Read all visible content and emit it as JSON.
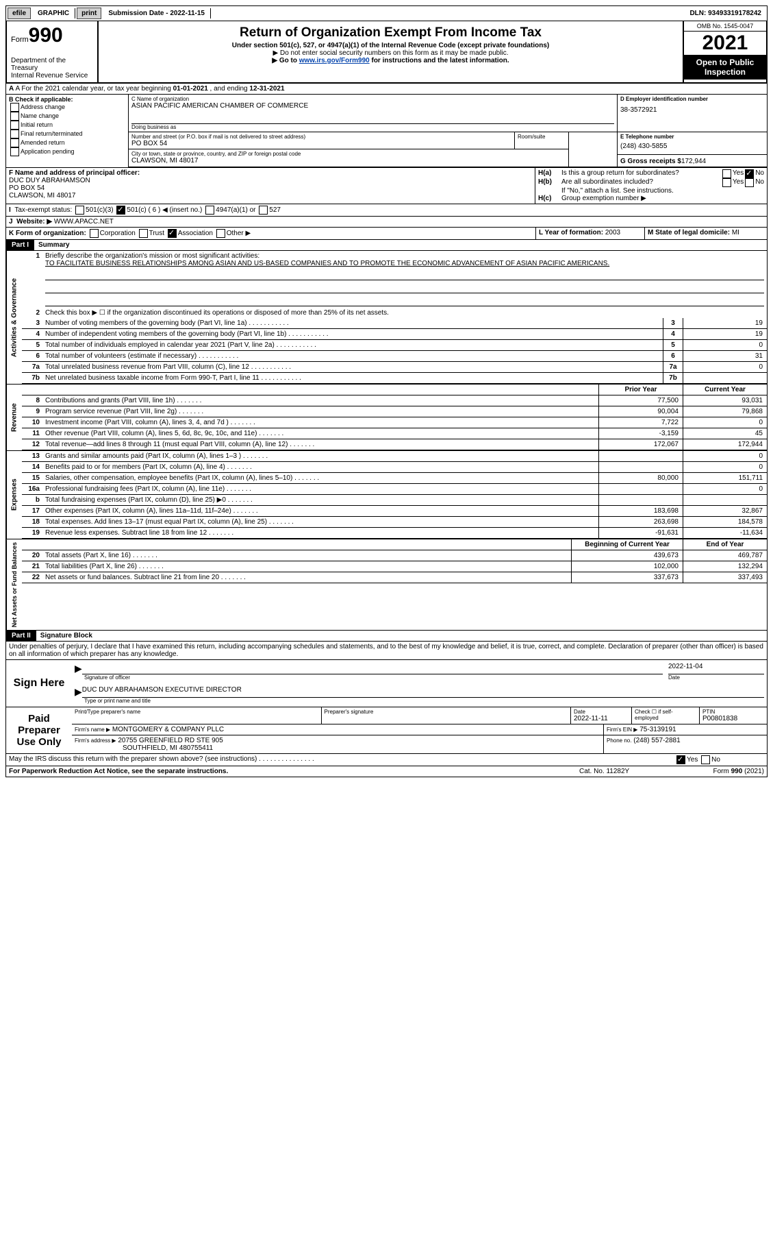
{
  "topbar": {
    "efile": "efile",
    "graphic": "GRAPHIC",
    "print": "print",
    "sub_lbl": "Submission Date - ",
    "sub_date": "2022-11-15",
    "dln_lbl": "DLN: ",
    "dln": "93493319178242"
  },
  "hdr": {
    "form": "Form",
    "num": "990",
    "title": "Return of Organization Exempt From Income Tax",
    "sub": "Under section 501(c), 527, or 4947(a)(1) of the Internal Revenue Code (except private foundations)",
    "note1": "▶ Do not enter social security numbers on this form as it may be made public.",
    "note2": "▶ Go to ",
    "link": "www.irs.gov/Form990",
    "note2b": " for instructions and the latest information.",
    "dept": "Department of the Treasury",
    "irsline": "Internal Revenue Service",
    "omb": "OMB No. 1545-0047",
    "year": "2021",
    "pub": "Open to Public Inspection"
  },
  "lineA": {
    "pre": "A For the 2021 calendar year, or tax year beginning ",
    "d1": "01-01-2021",
    "mid": " , and ending ",
    "d2": "12-31-2021"
  },
  "boxB": {
    "lbl": "B Check if applicable:",
    "items": [
      "Address change",
      "Name change",
      "Initial return",
      "Final return/terminated",
      "Amended return",
      "Application pending"
    ]
  },
  "boxC": {
    "name_lbl": "C Name of organization",
    "name": "ASIAN PACIFIC AMERICAN CHAMBER OF COMMERCE",
    "dba_lbl": "Doing business as",
    "addr_lbl": "Number and street (or P.O. box if mail is not delivered to street address)",
    "addr": "PO BOX 54",
    "room_lbl": "Room/suite",
    "city_lbl": "City or town, state or province, country, and ZIP or foreign postal code",
    "city": "CLAWSON, MI  48017"
  },
  "boxD": {
    "lbl": "D Employer identification number",
    "v": "38-3572921"
  },
  "boxE": {
    "lbl": "E Telephone number",
    "v": "(248) 430-5855"
  },
  "boxG": {
    "lbl": "G Gross receipts $",
    "v": "172,944"
  },
  "boxF": {
    "lbl": "F Name and address of principal officer:",
    "name": "DUC DUY ABRAHAMSON",
    "addr": "PO BOX 54",
    "city": "CLAWSON, MI  48017"
  },
  "boxH": {
    "a_lbl": "H(a)",
    "a_txt": "Is this a group return for subordinates?",
    "b_lbl": "H(b)",
    "b_txt": "Are all subordinates included?",
    "b_note": "If \"No,\" attach a list. See instructions.",
    "c_lbl": "H(c)",
    "c_txt": "Group exemption number ▶",
    "yes": "Yes",
    "no": "No"
  },
  "lineI": {
    "lbl": "I",
    "txt": "Tax-exempt status:",
    "o1": "501(c)(3)",
    "o2": "501(c) ( 6 ) ◀ (insert no.)",
    "o3": "4947(a)(1) or",
    "o4": "527"
  },
  "lineJ": {
    "lbl": "J",
    "txt": "Website: ▶",
    "v": "WWW.APACC.NET"
  },
  "lineK": {
    "lbl": "K Form of organization:",
    "o1": "Corporation",
    "o2": "Trust",
    "o3": "Association",
    "o4": "Other ▶"
  },
  "lineL": {
    "lbl": "L Year of formation:",
    "v": "2003"
  },
  "lineM": {
    "lbl": "M State of legal domicile:",
    "v": "MI"
  },
  "parts": {
    "p1": "Part I",
    "p1t": "Summary",
    "p2": "Part II",
    "p2t": "Signature Block"
  },
  "tabs": {
    "ag": "Activities & Governance",
    "rev": "Revenue",
    "exp": "Expenses",
    "na": "Net Assets or Fund Balances"
  },
  "summary": {
    "l1_lbl": "Briefly describe the organization's mission or most significant activities:",
    "l1": "TO FACILITATE BUSINESS RELATIONSHIPS AMONG ASIAN AND US-BASED COMPANIES AND TO PROMOTE THE ECONOMIC ADVANCEMENT OF ASIAN PACIFIC AMERICANS.",
    "l2": "Check this box ▶ ☐ if the organization discontinued its operations or disposed of more than 25% of its net assets.",
    "lines": [
      {
        "n": "3",
        "t": "Number of voting members of the governing body (Part VI, line 1a)",
        "v": "19"
      },
      {
        "n": "4",
        "t": "Number of independent voting members of the governing body (Part VI, line 1b)",
        "v": "19"
      },
      {
        "n": "5",
        "t": "Total number of individuals employed in calendar year 2021 (Part V, line 2a)",
        "v": "0"
      },
      {
        "n": "6",
        "t": "Total number of volunteers (estimate if necessary)",
        "v": "31"
      },
      {
        "n": "7a",
        "t": "Total unrelated business revenue from Part VIII, column (C), line 12",
        "v": "0"
      },
      {
        "n": "7b",
        "t": "Net unrelated business taxable income from Form 990-T, Part I, line 11",
        "v": ""
      }
    ],
    "hdr_prior": "Prior Year",
    "hdr_curr": "Current Year",
    "rev": [
      {
        "n": "8",
        "t": "Contributions and grants (Part VIII, line 1h)",
        "p": "77,500",
        "c": "93,031"
      },
      {
        "n": "9",
        "t": "Program service revenue (Part VIII, line 2g)",
        "p": "90,004",
        "c": "79,868"
      },
      {
        "n": "10",
        "t": "Investment income (Part VIII, column (A), lines 3, 4, and 7d )",
        "p": "7,722",
        "c": "0"
      },
      {
        "n": "11",
        "t": "Other revenue (Part VIII, column (A), lines 5, 6d, 8c, 9c, 10c, and 11e)",
        "p": "-3,159",
        "c": "45"
      },
      {
        "n": "12",
        "t": "Total revenue—add lines 8 through 11 (must equal Part VIII, column (A), line 12)",
        "p": "172,067",
        "c": "172,944"
      }
    ],
    "exp": [
      {
        "n": "13",
        "t": "Grants and similar amounts paid (Part IX, column (A), lines 1–3 )",
        "p": "",
        "c": "0"
      },
      {
        "n": "14",
        "t": "Benefits paid to or for members (Part IX, column (A), line 4)",
        "p": "",
        "c": "0"
      },
      {
        "n": "15",
        "t": "Salaries, other compensation, employee benefits (Part IX, column (A), lines 5–10)",
        "p": "80,000",
        "c": "151,711"
      },
      {
        "n": "16a",
        "t": "Professional fundraising fees (Part IX, column (A), line 11e)",
        "p": "",
        "c": "0"
      },
      {
        "n": "b",
        "t": "Total fundraising expenses (Part IX, column (D), line 25) ▶0",
        "p": "SHADE",
        "c": "SHADE"
      },
      {
        "n": "17",
        "t": "Other expenses (Part IX, column (A), lines 11a–11d, 11f–24e)",
        "p": "183,698",
        "c": "32,867"
      },
      {
        "n": "18",
        "t": "Total expenses. Add lines 13–17 (must equal Part IX, column (A), line 25)",
        "p": "263,698",
        "c": "184,578"
      },
      {
        "n": "19",
        "t": "Revenue less expenses. Subtract line 18 from line 12",
        "p": "-91,631",
        "c": "-11,634"
      }
    ],
    "hdr_boy": "Beginning of Current Year",
    "hdr_eoy": "End of Year",
    "na": [
      {
        "n": "20",
        "t": "Total assets (Part X, line 16)",
        "p": "439,673",
        "c": "469,787"
      },
      {
        "n": "21",
        "t": "Total liabilities (Part X, line 26)",
        "p": "102,000",
        "c": "132,294"
      },
      {
        "n": "22",
        "t": "Net assets or fund balances. Subtract line 21 from line 20",
        "p": "337,673",
        "c": "337,493"
      }
    ]
  },
  "penalty": "Under penalties of perjury, I declare that I have examined this return, including accompanying schedules and statements, and to the best of my knowledge and belief, it is true, correct, and complete. Declaration of preparer (other than officer) is based on all information of which preparer has any knowledge.",
  "sign": {
    "lbl": "Sign Here",
    "sig_lbl": "Signature of officer",
    "date": "2022-11-04",
    "date_lbl": "Date",
    "name": "DUC DUY ABRAHAMSON  EXECUTIVE DIRECTOR",
    "name_lbl": "Type or print name and title"
  },
  "prep": {
    "lbl": "Paid Preparer Use Only",
    "c1": "Print/Type preparer's name",
    "c2": "Preparer's signature",
    "c3": "Date",
    "c3v": "2022-11-11",
    "c4": "Check ☐ if self-employed",
    "c5": "PTIN",
    "c5v": "P00801838",
    "firm_lbl": "Firm's name   ▶",
    "firm": "MONTGOMERY & COMPANY PLLC",
    "ein_lbl": "Firm's EIN ▶",
    "ein": "75-3139191",
    "addr_lbl": "Firm's address ▶",
    "addr": "20755 GREENFIELD RD STE 905",
    "addr2": "SOUTHFIELD, MI  480755411",
    "ph_lbl": "Phone no.",
    "ph": "(248) 557-2881"
  },
  "discuss": {
    "t": "May the IRS discuss this return with the preparer shown above? (see instructions)",
    "yes": "Yes",
    "no": "No"
  },
  "foot": {
    "l": "For Paperwork Reduction Act Notice, see the separate instructions.",
    "m": "Cat. No. 11282Y",
    "r": "Form 990 (2021)"
  }
}
